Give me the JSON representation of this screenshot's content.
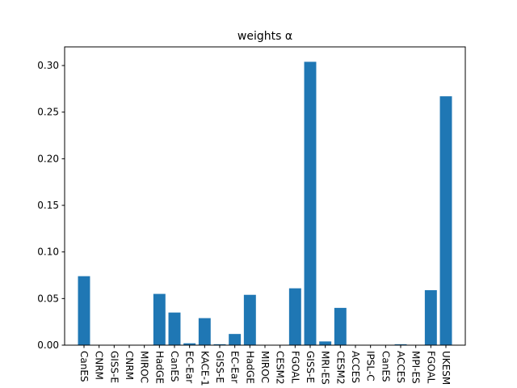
{
  "chart_data": {
    "type": "bar",
    "title": "weights α",
    "xlabel": "",
    "ylabel": "",
    "ylim": [
      0,
      0.32
    ],
    "yticks": [
      "0.00",
      "0.05",
      "0.10",
      "0.15",
      "0.20",
      "0.25",
      "0.30"
    ],
    "bar_color": "#1f77b4",
    "grid": false,
    "categories": [
      "CanES",
      "CNRM",
      "GISS-E",
      "CNRM",
      "MIROC",
      "HadGE",
      "CanES",
      "EC-Ear",
      "KACE-1",
      "GISS-E",
      "EC-Ear",
      "HadGE",
      "MIROC",
      "CESM2",
      "FGOAL",
      "GISS-E",
      "MRI-ES",
      "CESM2",
      "ACCES",
      "IPSL-C",
      "CanES",
      "ACCES",
      "MPI-ES",
      "FGOAL",
      "UKESM"
    ],
    "values": [
      0.074,
      0.0,
      0.0,
      0.0,
      0.0,
      0.055,
      0.035,
      0.002,
      0.029,
      0.001,
      0.012,
      0.054,
      0.0,
      0.0,
      0.061,
      0.304,
      0.004,
      0.04,
      0.0,
      0.0,
      0.0,
      0.001,
      0.0,
      0.059,
      0.267
    ]
  }
}
